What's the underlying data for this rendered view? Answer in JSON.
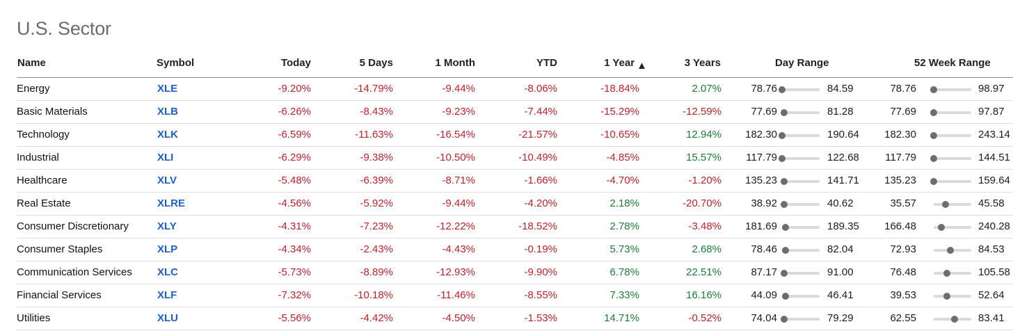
{
  "page": {
    "title": "U.S. Sector"
  },
  "columns": {
    "name": "Name",
    "symbol": "Symbol",
    "today": "Today",
    "days5": "5 Days",
    "month1": "1 Month",
    "ytd": "YTD",
    "year1": "1 Year",
    "sort_icon": "▲",
    "years3": "3 Years",
    "day_range": "Day Range",
    "week52_range": "52 Week Range"
  },
  "colors": {
    "negative": "#b8232b",
    "positive": "#1d7a3a",
    "symbol": "#1d5fc2"
  },
  "rows": [
    {
      "name": "Energy",
      "symbol": "XLE",
      "today": "-9.20%",
      "days5": "-14.79%",
      "month1": "-9.44%",
      "ytd": "-8.06%",
      "year1": "-18.84%",
      "years3": "2.07%",
      "day_low": "78.76",
      "day_high": "84.59",
      "day_pos": 0.0,
      "wk_low": "78.76",
      "wk_high": "98.97",
      "wk_pos": 0.0
    },
    {
      "name": "Basic Materials",
      "symbol": "XLB",
      "today": "-6.26%",
      "days5": "-8.43%",
      "month1": "-9.23%",
      "ytd": "-7.44%",
      "year1": "-15.29%",
      "years3": "-12.59%",
      "day_low": "77.69",
      "day_high": "81.28",
      "day_pos": 0.05,
      "wk_low": "77.69",
      "wk_high": "97.87",
      "wk_pos": 0.0
    },
    {
      "name": "Technology",
      "symbol": "XLK",
      "today": "-6.59%",
      "days5": "-11.63%",
      "month1": "-16.54%",
      "ytd": "-21.57%",
      "year1": "-10.65%",
      "years3": "12.94%",
      "day_low": "182.30",
      "day_high": "190.64",
      "day_pos": 0.0,
      "wk_low": "182.30",
      "wk_high": "243.14",
      "wk_pos": 0.0
    },
    {
      "name": "Industrial",
      "symbol": "XLI",
      "today": "-6.29%",
      "days5": "-9.38%",
      "month1": "-10.50%",
      "ytd": "-10.49%",
      "year1": "-4.85%",
      "years3": "15.57%",
      "day_low": "117.79",
      "day_high": "122.68",
      "day_pos": 0.0,
      "wk_low": "117.79",
      "wk_high": "144.51",
      "wk_pos": 0.0
    },
    {
      "name": "Healthcare",
      "symbol": "XLV",
      "today": "-5.48%",
      "days5": "-6.39%",
      "month1": "-8.71%",
      "ytd": "-1.66%",
      "year1": "-4.70%",
      "years3": "-1.20%",
      "day_low": "135.23",
      "day_high": "141.71",
      "day_pos": 0.05,
      "wk_low": "135.23",
      "wk_high": "159.64",
      "wk_pos": 0.0
    },
    {
      "name": "Real Estate",
      "symbol": "XLRE",
      "today": "-4.56%",
      "days5": "-5.92%",
      "month1": "-9.44%",
      "ytd": "-4.20%",
      "year1": "2.18%",
      "years3": "-20.70%",
      "day_low": "38.92",
      "day_high": "40.62",
      "day_pos": 0.05,
      "wk_low": "35.57",
      "wk_high": "45.58",
      "wk_pos": 0.32
    },
    {
      "name": "Consumer Discretionary",
      "symbol": "XLY",
      "today": "-4.31%",
      "days5": "-7.23%",
      "month1": "-12.22%",
      "ytd": "-18.52%",
      "year1": "2.78%",
      "years3": "-3.48%",
      "day_low": "181.69",
      "day_high": "189.35",
      "day_pos": 0.1,
      "wk_low": "166.48",
      "wk_high": "240.28",
      "wk_pos": 0.2
    },
    {
      "name": "Consumer Staples",
      "symbol": "XLP",
      "today": "-4.34%",
      "days5": "-2.43%",
      "month1": "-4.43%",
      "ytd": "-0.19%",
      "year1": "5.73%",
      "years3": "2.68%",
      "day_low": "78.46",
      "day_high": "82.04",
      "day_pos": 0.1,
      "wk_low": "72.93",
      "wk_high": "84.53",
      "wk_pos": 0.45
    },
    {
      "name": "Communication Services",
      "symbol": "XLC",
      "today": "-5.73%",
      "days5": "-8.89%",
      "month1": "-12.93%",
      "ytd": "-9.90%",
      "year1": "6.78%",
      "years3": "22.51%",
      "day_low": "87.17",
      "day_high": "91.00",
      "day_pos": 0.05,
      "wk_low": "76.48",
      "wk_high": "105.58",
      "wk_pos": 0.35
    },
    {
      "name": "Financial Services",
      "symbol": "XLF",
      "today": "-7.32%",
      "days5": "-10.18%",
      "month1": "-11.46%",
      "ytd": "-8.55%",
      "year1": "7.33%",
      "years3": "16.16%",
      "day_low": "44.09",
      "day_high": "46.41",
      "day_pos": 0.1,
      "wk_low": "39.53",
      "wk_high": "52.64",
      "wk_pos": 0.35
    },
    {
      "name": "Utilities",
      "symbol": "XLU",
      "today": "-5.56%",
      "days5": "-4.42%",
      "month1": "-4.50%",
      "ytd": "-1.53%",
      "year1": "14.71%",
      "years3": "-0.52%",
      "day_low": "74.04",
      "day_high": "79.29",
      "day_pos": 0.05,
      "wk_low": "62.55",
      "wk_high": "83.41",
      "wk_pos": 0.55
    }
  ]
}
